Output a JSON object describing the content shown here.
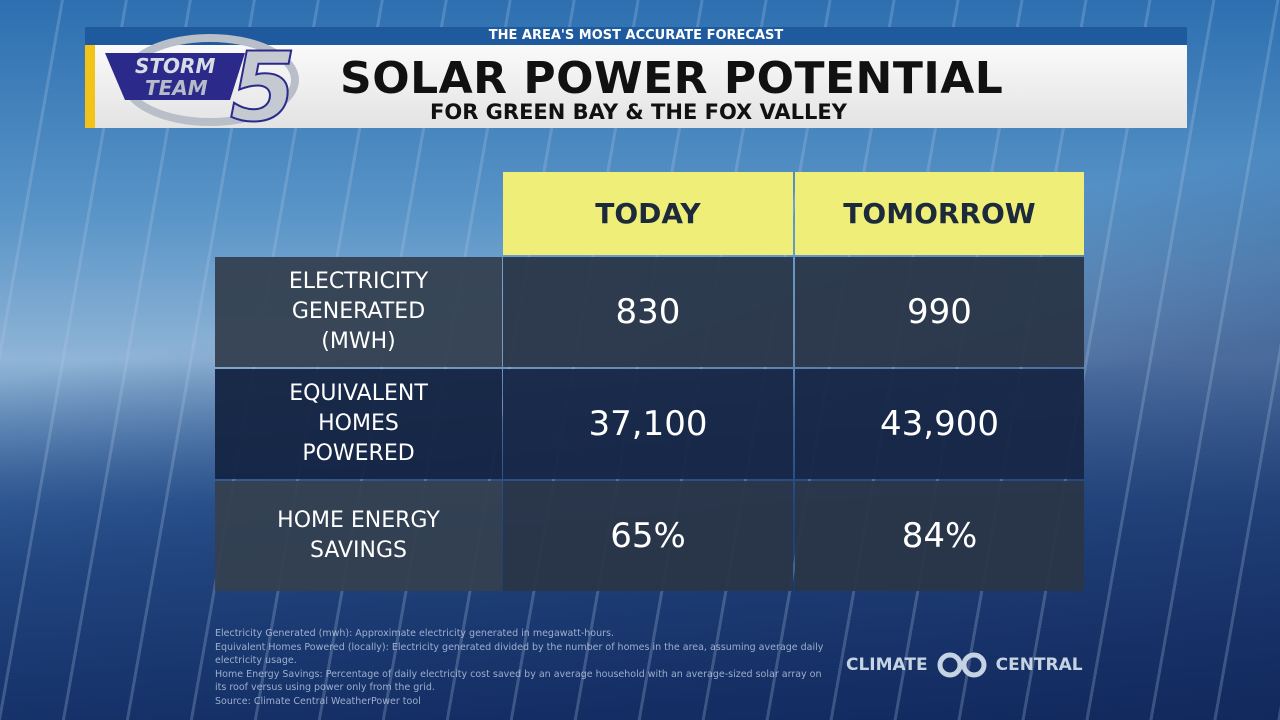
{
  "header": {
    "tagline": "THE AREA'S MOST ACCURATE FORECAST",
    "title": "SOLAR POWER POTENTIAL",
    "subtitle": "FOR GREEN BAY & THE FOX VALLEY",
    "logo_text": "STORM TEAM 5"
  },
  "table": {
    "columns": [
      "TODAY",
      "TOMORROW"
    ],
    "rows": [
      {
        "label": "ELECTRICITY GENERATED (MWH)",
        "today": "830",
        "tomorrow": "990"
      },
      {
        "label": "EQUIVALENT HOMES POWERED",
        "today": "37,100",
        "tomorrow": "43,900"
      },
      {
        "label": "HOME ENERGY SAVINGS",
        "today": "65%",
        "tomorrow": "84%"
      }
    ]
  },
  "notes": [
    "Electricity Generated (mwh): Approximate electricity generated in megawatt-hours.",
    "Equivalent Homes Powered (locally): Electricity generated divided by the number of homes in the area, assuming average daily electricity usage.",
    "Home Energy Savings: Percentage of daily electricity cost saved by an average household with an average-sized solar array on its roof versus using power only from the grid.",
    "Source: Climate Central WeatherPower tool"
  ],
  "branding": {
    "left": "CLIMATE",
    "right": "CENTRAL"
  }
}
